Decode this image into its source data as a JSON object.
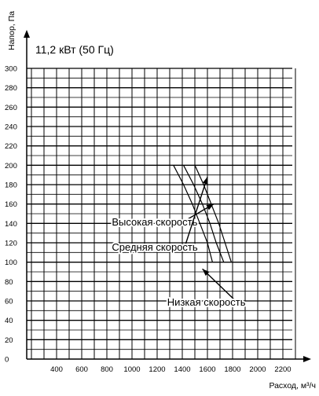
{
  "chart_data": {
    "type": "line",
    "title": "11,2 кВт (50 Гц)",
    "xlabel": "Расход, м³/ч",
    "ylabel": "Напор, Па",
    "xlim": [
      200,
      2300
    ],
    "ylim": [
      0,
      300
    ],
    "x_ticks": [
      400,
      600,
      800,
      1000,
      1200,
      1400,
      1600,
      1800,
      2000,
      2200
    ],
    "y_ticks": [
      0,
      20,
      40,
      60,
      80,
      100,
      120,
      140,
      160,
      180,
      200,
      220,
      240,
      260,
      280,
      300
    ],
    "grid": true,
    "series": [
      {
        "x": [
          1330,
          1410,
          1480,
          1540,
          1600,
          1640
        ],
        "y": [
          200,
          180,
          160,
          140,
          120,
          100
        ]
      },
      {
        "x": [
          1410,
          1490,
          1560,
          1620,
          1670,
          1730
        ],
        "y": [
          200,
          180,
          160,
          140,
          120,
          100
        ]
      },
      {
        "x": [
          1500,
          1570,
          1630,
          1690,
          1740,
          1790
        ],
        "y": [
          200,
          180,
          160,
          140,
          120,
          100
        ]
      }
    ],
    "annotations": [
      {
        "text": "Высокая скорость",
        "x": 840,
        "y": 138,
        "target": [
          1650,
          160
        ]
      },
      {
        "text": "Средняя скорость",
        "x": 840,
        "y": 112,
        "target": [
          1600,
          188
        ]
      },
      {
        "text": "Низкая скорость",
        "x": 1280,
        "y": 55,
        "target": [
          1560,
          93
        ]
      }
    ]
  }
}
